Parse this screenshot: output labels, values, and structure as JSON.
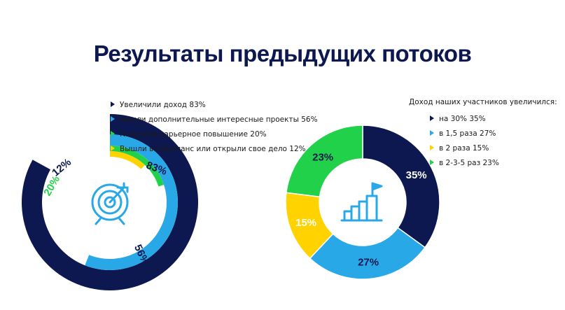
{
  "title": "Результаты предыдущих потоков",
  "colors": {
    "navy": "#0d1850",
    "blue": "#29a8e8",
    "green": "#22d14a",
    "yellow": "#ffd200",
    "icon": "#29a8e8"
  },
  "chart_data": [
    {
      "type": "radial-bar",
      "icon": "target-icon",
      "series": [
        {
          "label": "Увеличили доход 83%",
          "value": 83,
          "value_label": "83%",
          "color": "#0d1850"
        },
        {
          "label": "Нашли дополнительные интересные проекты 56%",
          "value": 56,
          "value_label": "56%",
          "color": "#29a8e8"
        },
        {
          "label": "Получили карьерное повышение 20%",
          "value": 20,
          "value_label": "20%",
          "color": "#22d14a"
        },
        {
          "label": "Вышли во фриланс или открыли свое дело 12%",
          "value": 12,
          "value_label": "12%",
          "color": "#ffd200"
        }
      ]
    },
    {
      "type": "pie",
      "donut": true,
      "icon": "podium-flag-icon",
      "legend_title": "Доход наших участников увеличился:",
      "series": [
        {
          "label": "на 30% 35%",
          "value": 35,
          "value_label": "35%",
          "color": "#0d1850",
          "label_color": "#ffffff"
        },
        {
          "label": "в 1,5 раза 27%",
          "value": 27,
          "value_label": "27%",
          "color": "#29a8e8",
          "label_color": "#0d1850"
        },
        {
          "label": "в 2 раза 15%",
          "value": 15,
          "value_label": "15%",
          "color": "#ffd200",
          "label_color": "#ffffff"
        },
        {
          "label": "в 2-3-5 раз 23%",
          "value": 23,
          "value_label": "23%",
          "color": "#22d14a",
          "label_color": "#0d1850"
        }
      ]
    }
  ]
}
